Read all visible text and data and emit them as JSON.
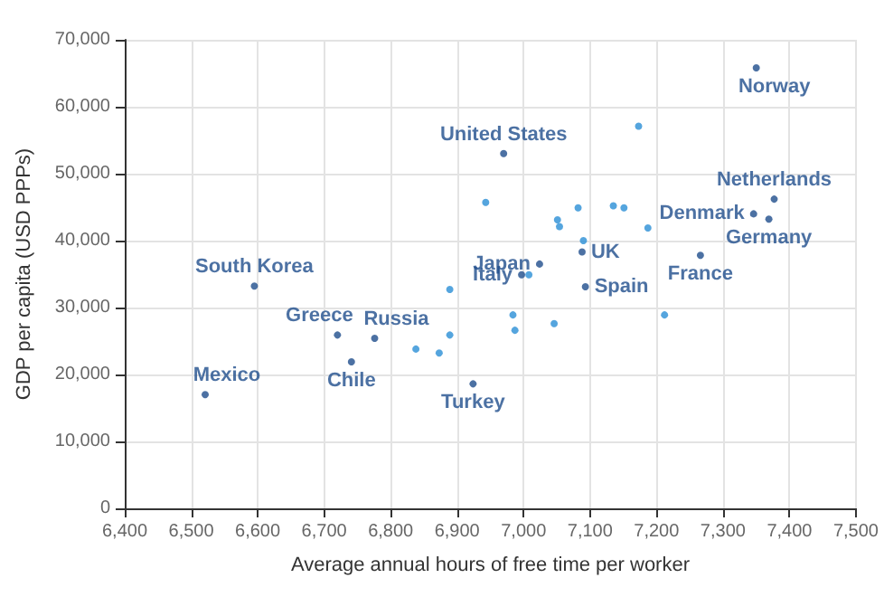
{
  "chart_data": {
    "type": "scatter",
    "xlabel": "Average annual hours of free time per worker",
    "ylabel": "GDP per capita (USD PPPs)",
    "xlim": [
      6400,
      7500
    ],
    "xticks": [
      {
        "value": 6400,
        "label": "6,400"
      },
      {
        "value": 6500,
        "label": "6,500"
      },
      {
        "value": 6600,
        "label": "6,600"
      },
      {
        "value": 6700,
        "label": "6,700"
      },
      {
        "value": 6800,
        "label": "6,800"
      },
      {
        "value": 6900,
        "label": "6,900"
      },
      {
        "value": 7000,
        "label": "7,000"
      },
      {
        "value": 7100,
        "label": "7,100"
      },
      {
        "value": 7200,
        "label": "7,200"
      },
      {
        "value": 7300,
        "label": "7,300"
      },
      {
        "value": 7400,
        "label": "7,400"
      },
      {
        "value": 7500,
        "label": "7,500"
      }
    ],
    "ylim": [
      0,
      70000
    ],
    "yticks": [
      0,
      {
        "value": 10000,
        "label": "10,000"
      },
      {
        "value": 20000,
        "label": "20,000"
      },
      {
        "value": 30000,
        "label": "30,000"
      },
      {
        "value": 40000,
        "label": "40,000"
      },
      {
        "value": 50000,
        "label": "50,000"
      },
      {
        "value": 60000,
        "label": "60,000"
      },
      {
        "value": 70000,
        "label": "70,000"
      }
    ],
    "grid": true,
    "marker": "circle",
    "series": [
      {
        "x": [
          6521,
          6595,
          6720,
          6741,
          6776,
          6924,
          6970,
          7024,
          6997,
          7088,
          7093,
          7266,
          7346,
          7350,
          7377,
          7369,
          6838,
          6873,
          6889,
          6889,
          6943,
          7008,
          6984,
          6987,
          7046,
          7051,
          7054,
          7082,
          7090,
          7135,
          7151,
          7173,
          7187,
          7212
        ],
        "values": [
          17000,
          33200,
          25900,
          21900,
          25400,
          18600,
          53000,
          36500,
          34900,
          38300,
          33100,
          37800,
          44000,
          65800,
          46200,
          43200,
          23800,
          23200,
          25900,
          32700,
          45700,
          34900,
          28900,
          26600,
          27600,
          43100,
          42100,
          44900,
          40000,
          45200,
          44900,
          57100,
          41900,
          28900
        ],
        "colors": [
          "#1f4e8c",
          "#1f4e8c",
          "#1f4e8c",
          "#1f4e8c",
          "#1f4e8c",
          "#1f4e8c",
          "#1f4e8c",
          "#1f4e8c",
          "#1f4e8c",
          "#1f4e8c",
          "#1f4e8c",
          "#1f4e8c",
          "#1f4e8c",
          "#1f4e8c",
          "#1f4e8c",
          "#1f4e8c",
          "#2a8fd6",
          "#2a8fd6",
          "#2a8fd6",
          "#2a8fd6",
          "#2a8fd6",
          "#2a8fd6",
          "#2a8fd6",
          "#2a8fd6",
          "#2a8fd6",
          "#2a8fd6",
          "#2a8fd6",
          "#2a8fd6",
          "#2a8fd6",
          "#2a8fd6",
          "#2a8fd6",
          "#2a8fd6",
          "#2a8fd6",
          "#2a8fd6"
        ],
        "value_labels": [
          "Mexico",
          "South Korea",
          "Greece",
          "Chile",
          "Russia",
          "Turkey",
          "United States",
          "Japan",
          "Italy",
          "UK",
          "Spain",
          "France",
          "Denmark",
          "Norway",
          "Netherlands",
          "Germany",
          null,
          null,
          null,
          null,
          null,
          null,
          null,
          null,
          null,
          null,
          null,
          null,
          null,
          null,
          null,
          null,
          null,
          null
        ]
      }
    ]
  }
}
